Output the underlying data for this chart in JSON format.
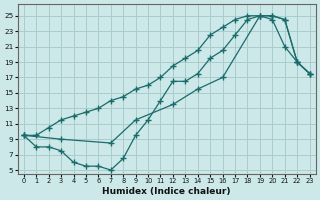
{
  "xlabel": "Humidex (Indice chaleur)",
  "bg_color": "#cce8e8",
  "grid_color": "#aacccc",
  "line_color": "#1a6b6b",
  "xlim": [
    -0.5,
    23.5
  ],
  "ylim": [
    4.5,
    26.5
  ],
  "xticks": [
    0,
    1,
    2,
    3,
    4,
    5,
    6,
    7,
    8,
    9,
    10,
    11,
    12,
    13,
    14,
    15,
    16,
    17,
    18,
    19,
    20,
    21,
    22,
    23
  ],
  "yticks": [
    5,
    7,
    9,
    11,
    13,
    15,
    17,
    19,
    21,
    23,
    25
  ],
  "curve1_x": [
    0,
    1,
    2,
    3,
    4,
    5,
    6,
    7,
    8,
    9,
    10,
    11,
    12,
    13,
    14,
    15,
    16,
    17,
    18,
    19,
    20,
    21,
    22,
    23
  ],
  "curve1_y": [
    9.5,
    8.0,
    8.0,
    7.5,
    6.0,
    5.5,
    5.5,
    5.0,
    6.5,
    9.5,
    11.5,
    14.0,
    16.5,
    16.5,
    17.5,
    19.5,
    20.5,
    22.5,
    24.5,
    25.0,
    25.0,
    24.5,
    19.0,
    17.5
  ],
  "curve2_x": [
    0,
    1,
    2,
    3,
    4,
    5,
    6,
    7,
    8,
    9,
    10,
    11,
    12,
    13,
    14,
    15,
    16,
    17,
    18,
    19,
    20,
    21,
    22,
    23
  ],
  "curve2_y": [
    9.5,
    9.5,
    10.5,
    11.5,
    12.0,
    12.5,
    13.0,
    14.0,
    14.5,
    15.5,
    16.0,
    17.0,
    18.5,
    19.5,
    20.5,
    22.5,
    23.5,
    24.5,
    25.0,
    25.0,
    24.5,
    21.0,
    19.0,
    17.5
  ],
  "curve3_x": [
    0,
    3,
    7,
    9,
    12,
    14,
    16,
    19,
    20,
    21,
    22,
    23
  ],
  "curve3_y": [
    9.5,
    9.0,
    8.5,
    11.5,
    13.5,
    15.5,
    17.0,
    25.0,
    25.0,
    24.5,
    19.0,
    17.5
  ]
}
